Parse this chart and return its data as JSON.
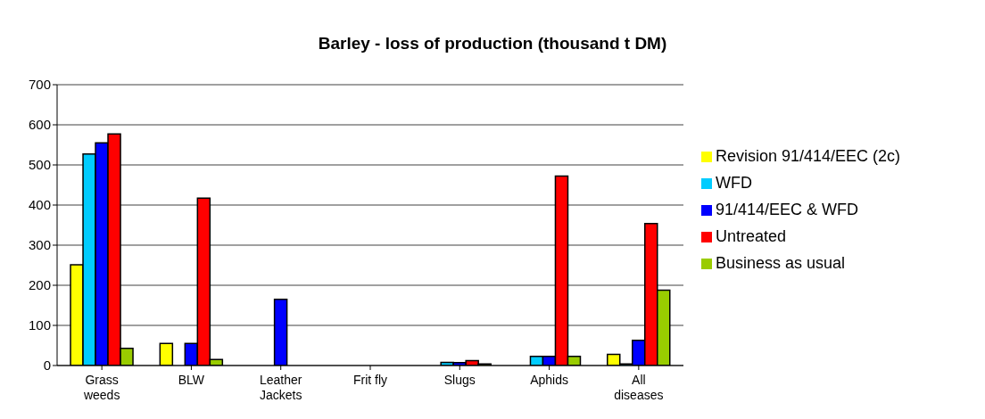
{
  "chart_data": {
    "type": "bar",
    "title": "Barley - loss of production (thousand t DM)",
    "categories": [
      "Grass weeds",
      "BLW",
      "Leather Jackets",
      "Frit fly",
      "Slugs",
      "Aphids",
      "All diseases"
    ],
    "series": [
      {
        "name": "Revision 91/414/EEC (2c)",
        "color": "#ffff00",
        "values": [
          251,
          55,
          0,
          0,
          0,
          0,
          28
        ]
      },
      {
        "name": "WFD",
        "color": "#00ccff",
        "values": [
          527,
          0,
          0,
          0,
          8,
          23,
          4
        ]
      },
      {
        "name": "91/414/EEC & WFD",
        "color": "#0000ff",
        "values": [
          555,
          55,
          165,
          0,
          7,
          23,
          63
        ]
      },
      {
        "name": "Untreated",
        "color": "#ff0000",
        "values": [
          577,
          417,
          0,
          0,
          12,
          472,
          354
        ]
      },
      {
        "name": "Business as usual",
        "color": "#99cc00",
        "values": [
          43,
          15,
          0,
          0,
          4,
          23,
          188
        ]
      }
    ],
    "ylim": [
      0,
      700
    ],
    "yticks": [
      0,
      100,
      200,
      300,
      400,
      500,
      600,
      700
    ],
    "grid": "y",
    "legend": "right"
  }
}
